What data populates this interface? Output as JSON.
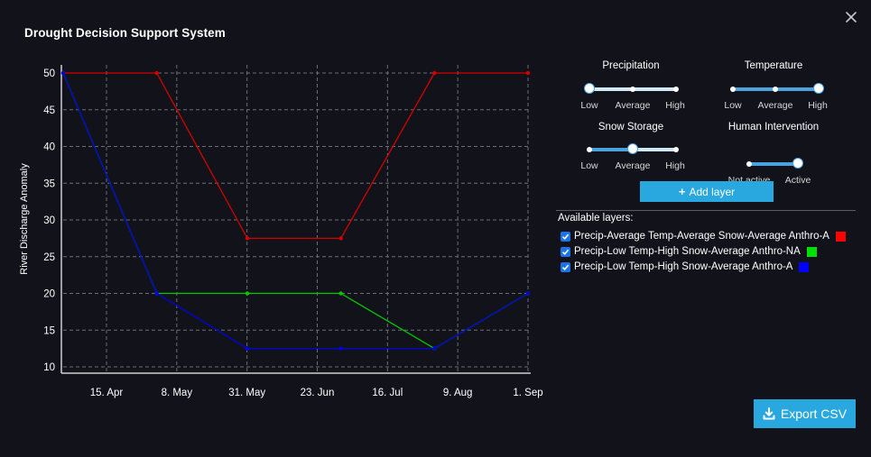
{
  "header": {
    "title": "Drought Decision Support System"
  },
  "icons": {
    "close": "close-icon",
    "add": "plus-icon",
    "export": "download-icon"
  },
  "colors": {
    "background": "#12131a",
    "accent": "#29a8e0",
    "slider_track": "#cfe9f7",
    "slider_fill": "#4aa3df"
  },
  "controls": {
    "precipitation": {
      "title": "Precipitation",
      "options": [
        "Low",
        "Average",
        "High"
      ],
      "selected": "Low"
    },
    "temperature": {
      "title": "Temperature",
      "options": [
        "Low",
        "Average",
        "High"
      ],
      "selected": "High"
    },
    "snow_storage": {
      "title": "Snow Storage",
      "options": [
        "Low",
        "Average",
        "High"
      ],
      "selected": "Average"
    },
    "human_intervention": {
      "title": "Human Intervention",
      "options": [
        "Not active",
        "Active"
      ],
      "selected": "Active"
    },
    "add_layer_label": "Add layer"
  },
  "layers": {
    "title": "Available layers:",
    "items": [
      {
        "label": "Precip-Average Temp-Average Snow-Average Anthro-A",
        "checked": true,
        "color": "#ff0000"
      },
      {
        "label": "Precip-Low Temp-High Snow-Average Anthro-NA",
        "checked": true,
        "color": "#00e000"
      },
      {
        "label": "Precip-Low Temp-High Snow-Average Anthro-A",
        "checked": true,
        "color": "#0000ff"
      }
    ]
  },
  "export_label": "Export CSV",
  "chart_data": {
    "type": "line",
    "title": "",
    "xlabel": "",
    "ylabel": "River Discharge Anomaly",
    "x_ticks": [
      "15. Apr",
      "8. May",
      "31. May",
      "23. Jun",
      "16. Jul",
      "9. Aug",
      "1. Sep"
    ],
    "x_range": [
      "2023-03-31",
      "2023-09-01"
    ],
    "ylim": [
      9,
      51
    ],
    "y_ticks": [
      10,
      15,
      20,
      25,
      30,
      35,
      40,
      45,
      50
    ],
    "grid": true,
    "legend": "none",
    "series": [
      {
        "color": "#d40000",
        "points": [
          {
            "x": "2023-03-31",
            "y": 50
          },
          {
            "x": "2023-05-01",
            "y": 50
          },
          {
            "x": "2023-05-31",
            "y": 27.5
          },
          {
            "x": "2023-07-01",
            "y": 27.5
          },
          {
            "x": "2023-08-01",
            "y": 50
          },
          {
            "x": "2023-09-01",
            "y": 50
          }
        ]
      },
      {
        "color": "#00c800",
        "points": [
          {
            "x": "2023-03-31",
            "y": 50
          },
          {
            "x": "2023-05-01",
            "y": 20
          },
          {
            "x": "2023-05-31",
            "y": 20
          },
          {
            "x": "2023-07-01",
            "y": 20
          },
          {
            "x": "2023-08-01",
            "y": 12.5
          },
          {
            "x": "2023-09-01",
            "y": 20
          }
        ]
      },
      {
        "color": "#0000e0",
        "points": [
          {
            "x": "2023-03-31",
            "y": 50
          },
          {
            "x": "2023-05-01",
            "y": 20
          },
          {
            "x": "2023-05-31",
            "y": 12.5
          },
          {
            "x": "2023-07-01",
            "y": 12.5
          },
          {
            "x": "2023-08-01",
            "y": 12.5
          },
          {
            "x": "2023-09-01",
            "y": 20
          }
        ]
      }
    ]
  }
}
